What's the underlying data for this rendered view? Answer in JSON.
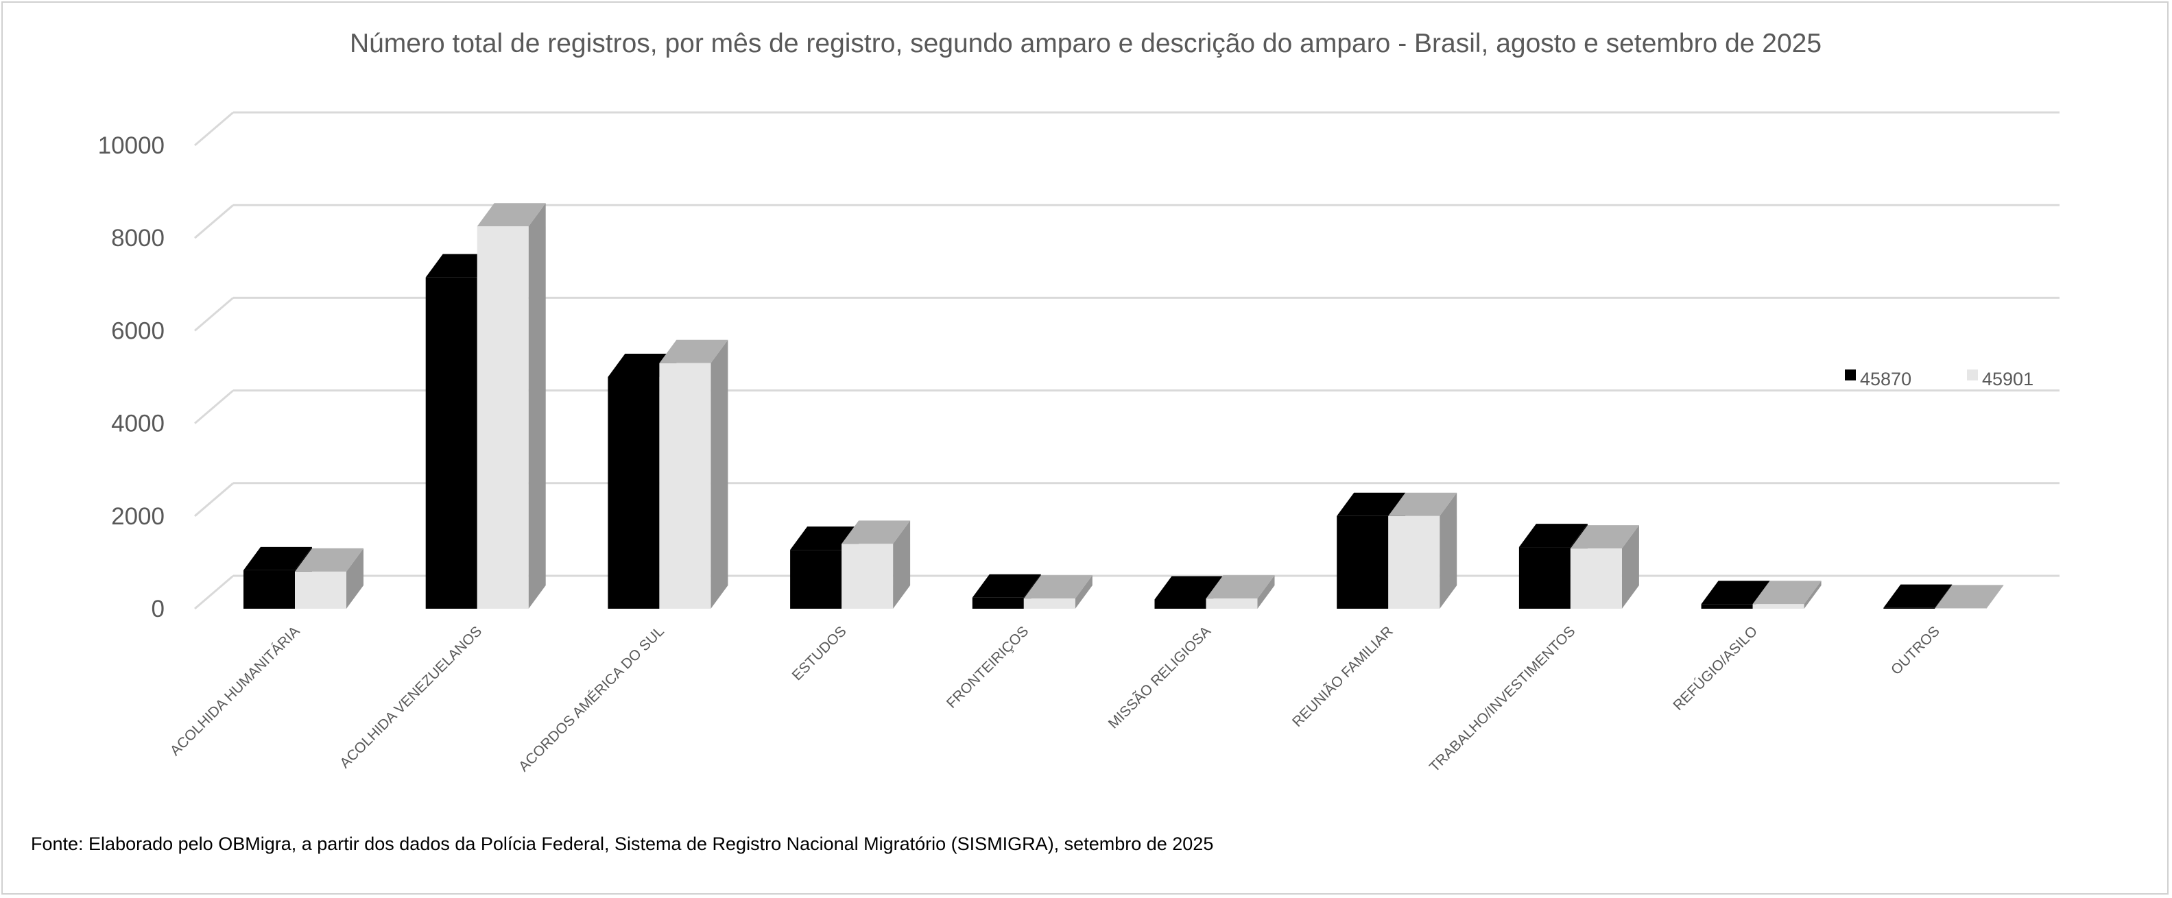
{
  "chart_data": {
    "type": "bar",
    "style": "3d-clustered-column",
    "title": "Número total de registros, por mês de registro, segundo amparo e descrição do amparo - Brasil, agosto e setembro de 2025",
    "xlabel": "",
    "ylabel": "",
    "ylim": [
      0,
      10000
    ],
    "yticks": [
      "0",
      "2000",
      "4000",
      "6000",
      "8000",
      "10000"
    ],
    "grid": true,
    "legend_position": "right",
    "categories": [
      "ACOLHIDA HUMANITÁRIA",
      "ACOLHIDA VENEZUELANOS",
      "ACORDOS AMÉRICA DO SUL",
      "ESTUDOS",
      "FRONTEIRIÇOS",
      "MISSÃO RELIGIOSA",
      "REUNIÃO FAMILIAR",
      "TRABALHO/INVESTIMENTOS",
      "REFÚGIO/ASILO",
      "OUTROS"
    ],
    "series": [
      {
        "name": "45870",
        "color": "#000000",
        "values": [
          830,
          7150,
          5000,
          1270,
          240,
          200,
          2000,
          1330,
          100,
          20
        ]
      },
      {
        "name": "45901",
        "color": "#e6e6e6",
        "values": [
          800,
          8250,
          5300,
          1400,
          220,
          220,
          2000,
          1300,
          100,
          10
        ]
      }
    ]
  },
  "footer": {
    "source": "Fonte: Elaborado pelo OBMigra, a partir dos dados da Polícia Federal, Sistema de Registro Nacional Migratório (SISMIGRA), setembro de 2025"
  }
}
